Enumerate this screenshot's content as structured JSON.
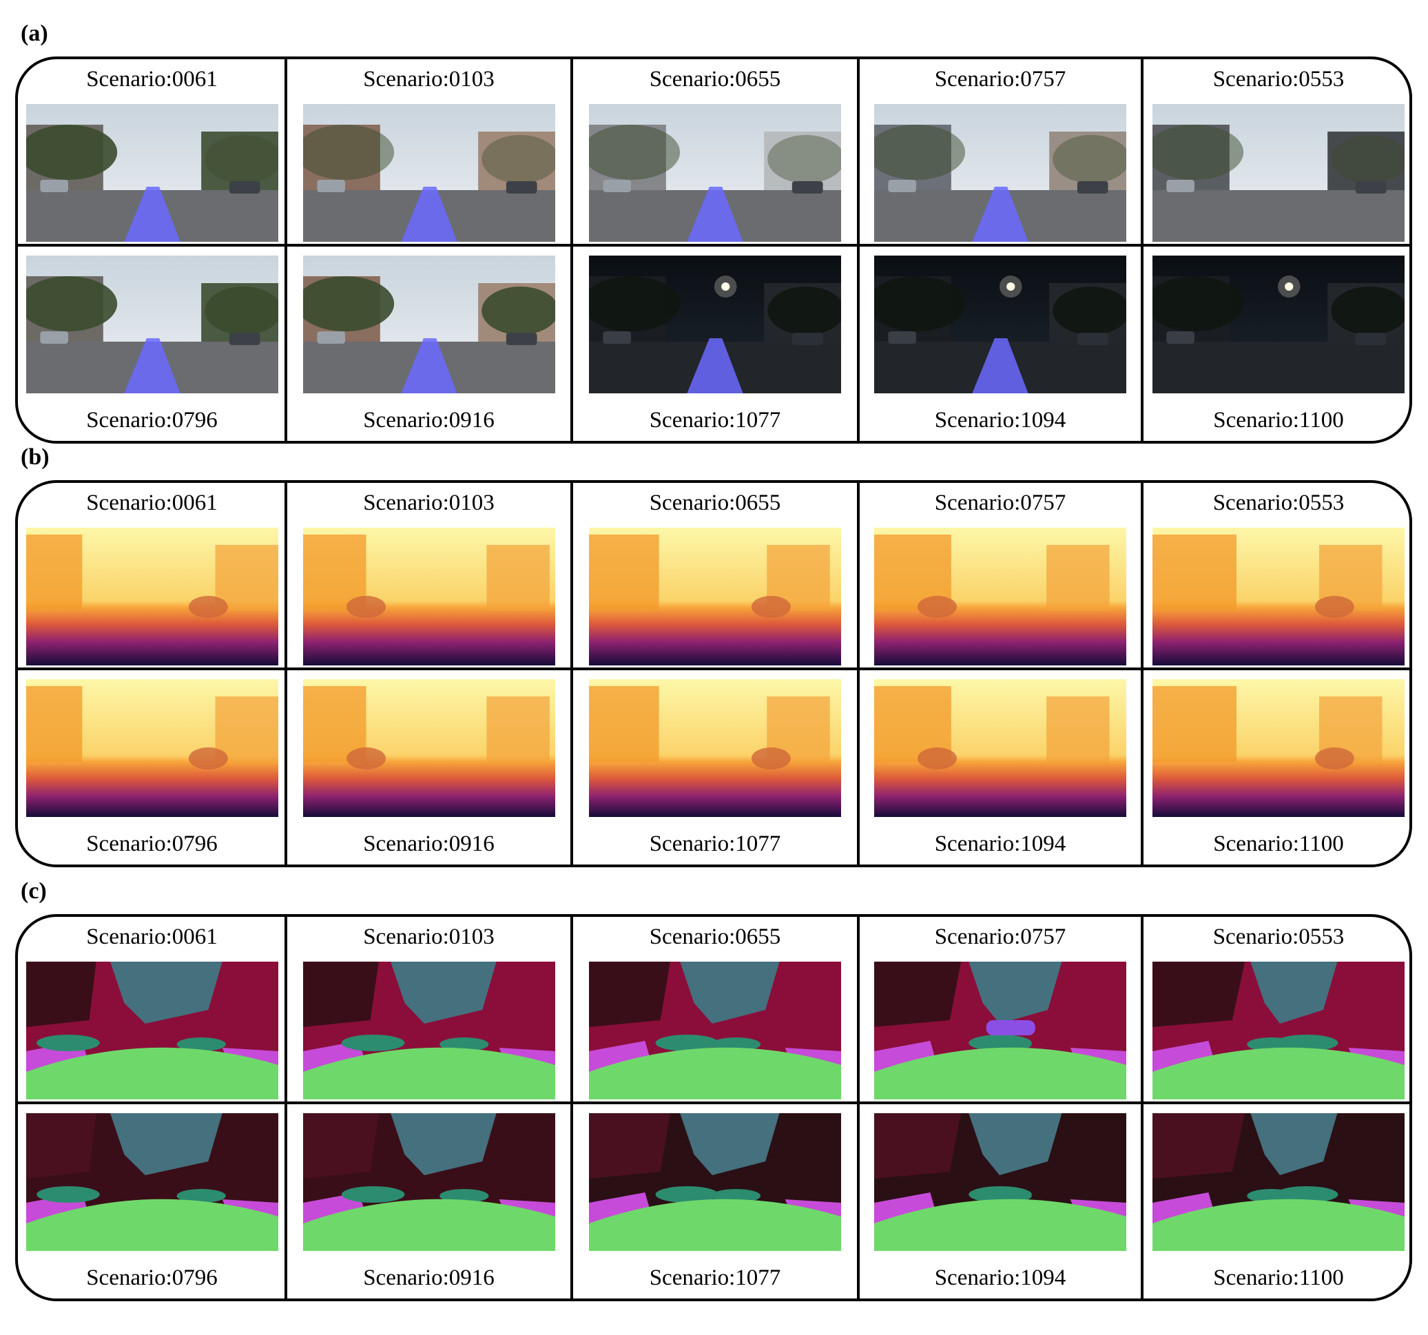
{
  "panels": [
    {
      "id": "a",
      "label": "(a)",
      "type": "camera"
    },
    {
      "id": "b",
      "label": "(b)",
      "type": "depth"
    },
    {
      "id": "c",
      "label": "(c)",
      "type": "segmentation"
    }
  ],
  "scenarios": {
    "top": [
      "Scenario:0061",
      "Scenario:0103",
      "Scenario:0655",
      "Scenario:0757",
      "Scenario:0553"
    ],
    "bottom": [
      "Scenario:0796",
      "Scenario:0916",
      "Scenario:1077",
      "Scenario:1094",
      "Scenario:1100"
    ]
  },
  "colors": {
    "trajectory": "#6a6aff",
    "seg_road": "#6fd86a",
    "seg_building": "#8b0e3a",
    "seg_vegetation": "#3a0e18",
    "seg_sky": "#45707e",
    "seg_sidewalk": "#c64bd8",
    "seg_terrain": "#2c8c70",
    "seg_vehicle": "#8c4fe6"
  },
  "night_scenes": [
    "Scenario:1077",
    "Scenario:1094",
    "Scenario:1100"
  ]
}
